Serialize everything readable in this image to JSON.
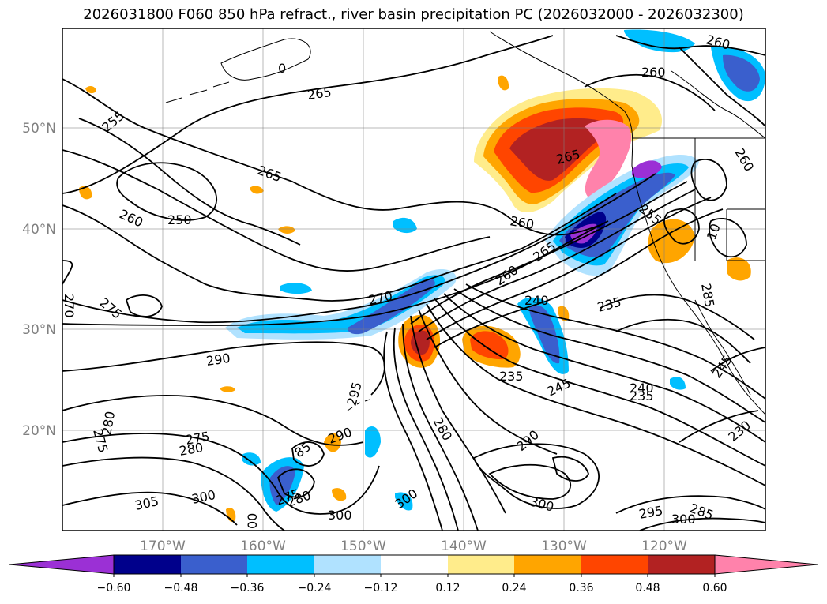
{
  "title": "2026031800 F060 850 hPa refract., river basin precipitation PC (2026032000 - 2026032300)",
  "lon_ticks": [
    "170°W",
    "160°W",
    "150°W",
    "140°W",
    "130°W",
    "120°W"
  ],
  "lat_ticks": [
    "50°N",
    "40°N",
    "30°N",
    "20°N"
  ],
  "colorbar": {
    "ticks": [
      "−0.60",
      "−0.48",
      "−0.36",
      "−0.24",
      "−0.12",
      "0.12",
      "0.24",
      "0.36",
      "0.48",
      "0.60"
    ],
    "colors": [
      "#9b30d5",
      "#00008b",
      "#3a5fcd",
      "#00bfff",
      "#b0e2ff",
      "#ffffff",
      "#ffec8b",
      "#ffa500",
      "#ff4500",
      "#b22222",
      "#ff82ab"
    ]
  },
  "contour_labels": [
    "0",
    "265",
    "255",
    "265",
    "260",
    "250",
    "270",
    "275",
    "290",
    "280",
    "275",
    "275",
    "280",
    "305",
    "300",
    "295",
    "290",
    "85",
    "275",
    "280",
    "300",
    "00",
    "270",
    "260",
    "265",
    "265",
    "260",
    "255",
    "240",
    "235",
    "235",
    "245",
    "240",
    "235",
    "290",
    "280",
    "300",
    "300",
    "295",
    "300",
    "285",
    "230",
    "245",
    "260",
    "260",
    "260",
    "285",
    "10"
  ]
}
